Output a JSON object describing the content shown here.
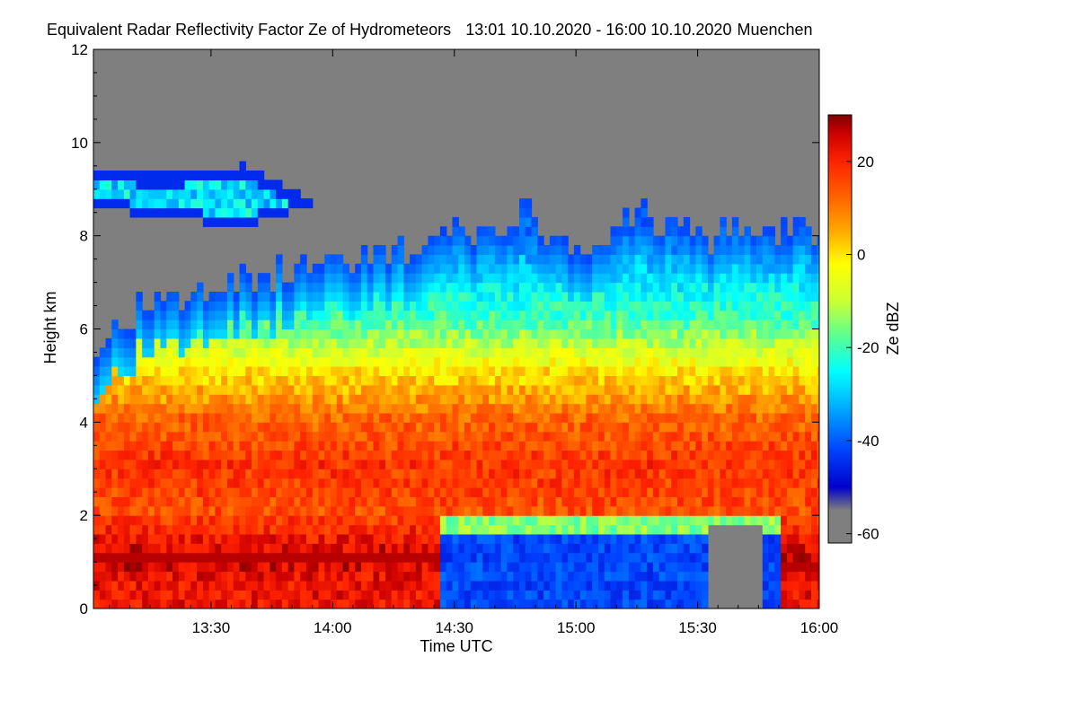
{
  "chart_data": {
    "type": "heatmap",
    "title": "Equivalent Radar Reflectivity Factor Ze of Hydrometeors",
    "period": "13:01 10.10.2020 - 16:00 10.10.2020",
    "location": "Muenchen",
    "xlabel": "Time UTC",
    "ylabel": "Height km",
    "colorbar_label": "Ze dBZ",
    "xlim": [
      "13:01",
      "16:00"
    ],
    "ylim": [
      0,
      12
    ],
    "zlim": [
      -62,
      30
    ],
    "x_ticks": [
      {
        "label": "13:30",
        "value": 29
      },
      {
        "label": "14:00",
        "value": 59
      },
      {
        "label": "14:30",
        "value": 89
      },
      {
        "label": "15:00",
        "value": 119
      },
      {
        "label": "15:30",
        "value": 149
      },
      {
        "label": "16:00",
        "value": 179
      }
    ],
    "y_ticks": [
      {
        "label": "0",
        "value": 0
      },
      {
        "label": "2",
        "value": 2
      },
      {
        "label": "4",
        "value": 4
      },
      {
        "label": "6",
        "value": 6
      },
      {
        "label": "8",
        "value": 8
      },
      {
        "label": "10",
        "value": 10
      },
      {
        "label": "12",
        "value": 12
      }
    ],
    "colorbar_ticks": [
      {
        "label": "20",
        "value": 20
      },
      {
        "label": "0",
        "value": 0
      },
      {
        "label": "-20",
        "value": -20
      },
      {
        "label": "-40",
        "value": -40
      },
      {
        "label": "-60",
        "value": -60
      }
    ],
    "colormap": [
      "#7f7f7f",
      "#7f7f7f",
      "#0000cc",
      "#0044ff",
      "#00ccff",
      "#00ffff",
      "#55ff99",
      "#ccff33",
      "#ffff00",
      "#ffaa00",
      "#ff6600",
      "#ff2200",
      "#cc0000",
      "#7f0000"
    ],
    "colormap_stops": [
      -62,
      -55,
      -50,
      -42,
      -30,
      -25,
      -18,
      -10,
      -2,
      5,
      12,
      20,
      26,
      30
    ],
    "nodata_color": "#7f7f7f",
    "x_times": [
      "13:01",
      "13:16",
      "13:31",
      "13:46",
      "14:01",
      "14:16",
      "14:31",
      "14:46",
      "15:01",
      "15:16",
      "15:31",
      "15:46",
      "16:00"
    ],
    "cloud_top_km": [
      5.6,
      6.6,
      6.9,
      7.1,
      7.3,
      7.6,
      7.9,
      8.3,
      7.6,
      8.3,
      7.9,
      8.1,
      8.0
    ],
    "cirrus_layer": {
      "x_start": "13:01",
      "x_end": "13:55",
      "base_km": [
        8.5,
        8.3,
        8.1,
        8.6
      ],
      "top_km": [
        9.3,
        9.2,
        9.4,
        8.6
      ]
    },
    "rain_layer_top_km": [
      1.1,
      1.1,
      1.1,
      1.1,
      1.1,
      1.1,
      1.0,
      1.0,
      1.0,
      1.0,
      1.0,
      1.0,
      1.0
    ],
    "dry_gap": {
      "x_start": "14:25",
      "x_end": "15:50",
      "top_km": 1.9
    },
    "dbz_profile": [
      {
        "height_km": 0.5,
        "dbz": 22
      },
      {
        "height_km": 1.0,
        "dbz": 26
      },
      {
        "height_km": 2.0,
        "dbz": 15
      },
      {
        "height_km": 3.0,
        "dbz": 18
      },
      {
        "height_km": 4.0,
        "dbz": 12
      },
      {
        "height_km": 5.0,
        "dbz": 0
      },
      {
        "height_km": 6.0,
        "dbz": -18
      },
      {
        "height_km": 7.0,
        "dbz": -28
      },
      {
        "height_km": 8.0,
        "dbz": -38
      }
    ]
  }
}
